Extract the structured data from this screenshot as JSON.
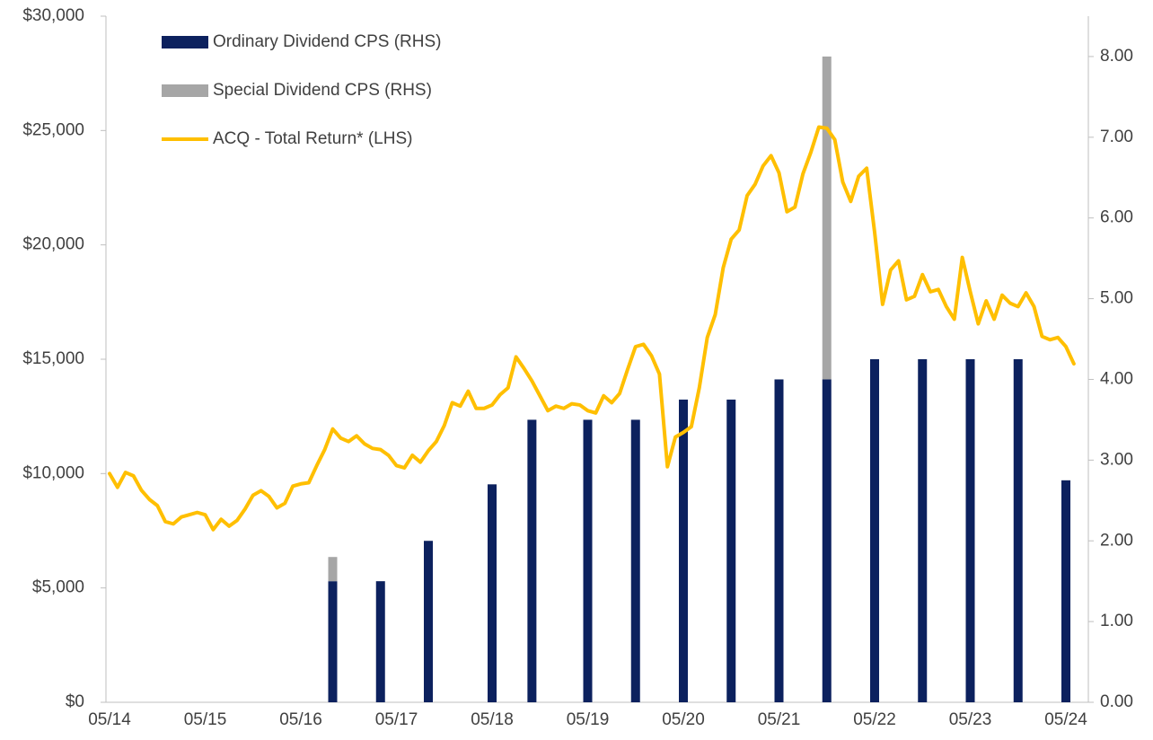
{
  "chart_data": {
    "type": "bar",
    "categories": [
      "05/14",
      null,
      null,
      null,
      null,
      null,
      null,
      null,
      null,
      null,
      null,
      null,
      "05/15",
      null,
      null,
      null,
      null,
      null,
      null,
      null,
      null,
      null,
      null,
      null,
      "05/16",
      null,
      null,
      null,
      null,
      null,
      null,
      null,
      null,
      null,
      null,
      null,
      "05/17",
      null,
      null,
      null,
      null,
      null,
      null,
      null,
      null,
      null,
      null,
      null,
      "05/18",
      null,
      null,
      null,
      null,
      null,
      null,
      null,
      null,
      null,
      null,
      null,
      "05/19",
      null,
      null,
      null,
      null,
      null,
      null,
      null,
      null,
      null,
      null,
      null,
      "05/20",
      null,
      null,
      null,
      null,
      null,
      null,
      null,
      null,
      null,
      null,
      null,
      "05/21",
      null,
      null,
      null,
      null,
      null,
      null,
      null,
      null,
      null,
      null,
      null,
      "05/22",
      null,
      null,
      null,
      null,
      null,
      null,
      null,
      null,
      null,
      null,
      null,
      "05/23",
      null,
      null,
      null,
      null,
      null,
      null,
      null,
      null,
      null,
      null,
      null,
      "05/24",
      null
    ],
    "series": [
      {
        "name": "Ordinary Dividend CPS (RHS)",
        "type": "bar",
        "axis": "y2",
        "color": "#0c215e",
        "values": [
          null,
          null,
          null,
          null,
          null,
          null,
          null,
          null,
          null,
          null,
          null,
          null,
          null,
          null,
          null,
          null,
          null,
          null,
          null,
          null,
          null,
          null,
          null,
          null,
          null,
          null,
          null,
          null,
          1.5,
          null,
          null,
          null,
          null,
          null,
          1.5,
          null,
          null,
          null,
          null,
          null,
          2.0,
          null,
          null,
          null,
          null,
          null,
          null,
          null,
          2.7,
          null,
          null,
          null,
          null,
          3.5,
          null,
          null,
          null,
          null,
          null,
          null,
          3.5,
          null,
          null,
          null,
          null,
          null,
          3.5,
          null,
          null,
          null,
          null,
          null,
          3.75,
          null,
          null,
          null,
          null,
          null,
          3.75,
          null,
          null,
          null,
          null,
          null,
          4.0,
          null,
          null,
          null,
          null,
          null,
          4.0,
          null,
          null,
          null,
          null,
          null,
          4.25,
          null,
          null,
          null,
          null,
          null,
          4.25,
          null,
          null,
          null,
          null,
          null,
          4.25,
          null,
          null,
          null,
          null,
          null,
          4.25,
          null,
          null,
          null,
          null,
          null,
          2.75,
          null
        ]
      },
      {
        "name": "Special Dividend CPS (RHS)",
        "type": "bar",
        "axis": "y2",
        "color": "#a6a6a6",
        "values": [
          null,
          null,
          null,
          null,
          null,
          null,
          null,
          null,
          null,
          null,
          null,
          null,
          null,
          null,
          null,
          null,
          null,
          null,
          null,
          null,
          null,
          null,
          null,
          null,
          null,
          null,
          null,
          null,
          0.3,
          null,
          null,
          null,
          null,
          null,
          null,
          null,
          null,
          null,
          null,
          null,
          null,
          null,
          null,
          null,
          null,
          null,
          null,
          null,
          null,
          null,
          null,
          null,
          null,
          null,
          null,
          null,
          null,
          null,
          null,
          null,
          null,
          null,
          null,
          null,
          null,
          null,
          null,
          null,
          null,
          null,
          null,
          null,
          null,
          null,
          null,
          null,
          null,
          null,
          null,
          null,
          null,
          null,
          null,
          null,
          null,
          null,
          null,
          null,
          null,
          null,
          4.0,
          null,
          null,
          null,
          null,
          null,
          null,
          null,
          null,
          null,
          null,
          null,
          null,
          null,
          null,
          null,
          null,
          null,
          null,
          null,
          null,
          null,
          null,
          null,
          null,
          null,
          null,
          null,
          null,
          null,
          null,
          null
        ]
      },
      {
        "name": "ACQ - Total Return* (LHS)",
        "type": "line",
        "color": "#ffbf00",
        "values": [
          10000,
          9400,
          10050,
          9900,
          9270,
          8870,
          8600,
          7900,
          7800,
          8100,
          8200,
          8300,
          8200,
          7550,
          8000,
          7700,
          7950,
          8450,
          9050,
          9250,
          9000,
          8500,
          8700,
          9450,
          9550,
          9600,
          10350,
          11050,
          11950,
          11550,
          11400,
          11650,
          11300,
          11100,
          11050,
          10800,
          10350,
          10250,
          10800,
          10500,
          11000,
          11400,
          12100,
          13100,
          12950,
          13600,
          12850,
          12850,
          13000,
          13450,
          13750,
          15100,
          14600,
          14050,
          13400,
          12750,
          12950,
          12850,
          13050,
          13000,
          12750,
          12650,
          13400,
          13100,
          13500,
          14550,
          15550,
          15650,
          15150,
          14350,
          10300,
          11600,
          11800,
          12050,
          13750,
          15950,
          16950,
          19000,
          20250,
          20650,
          22150,
          22650,
          23450,
          23900,
          23150,
          21450,
          21650,
          23100,
          24050,
          25150,
          25100,
          24600,
          22750,
          21900,
          23000,
          23350,
          20550,
          17400,
          18900,
          19300,
          17600,
          17750,
          18700,
          17950,
          18050,
          17300,
          16750,
          19450,
          17950,
          16550,
          17550,
          16750,
          17800,
          17450,
          17300,
          17900,
          17300,
          16000,
          15850,
          15950,
          15550,
          14800
        ]
      }
    ],
    "ylim": [
      0,
      30000
    ],
    "yticks": [
      {
        "value": 0,
        "label": "$0"
      },
      {
        "value": 5000,
        "label": "$5,000"
      },
      {
        "value": 10000,
        "label": "$10,000"
      },
      {
        "value": 15000,
        "label": "$15,000"
      },
      {
        "value": 20000,
        "label": "$20,000"
      },
      {
        "value": 25000,
        "label": "$25,000"
      },
      {
        "value": 30000,
        "label": "$30,000"
      }
    ],
    "y2lim": [
      0,
      8.5
    ],
    "y2ticks": [
      {
        "value": 0,
        "label": "0.00"
      },
      {
        "value": 1,
        "label": "1.00"
      },
      {
        "value": 2,
        "label": "2.00"
      },
      {
        "value": 3,
        "label": "3.00"
      },
      {
        "value": 4,
        "label": "4.00"
      },
      {
        "value": 5,
        "label": "5.00"
      },
      {
        "value": 6,
        "label": "6.00"
      },
      {
        "value": 7,
        "label": "7.00"
      },
      {
        "value": 8,
        "label": "8.00"
      }
    ],
    "legend": "upper left",
    "grid": false
  }
}
